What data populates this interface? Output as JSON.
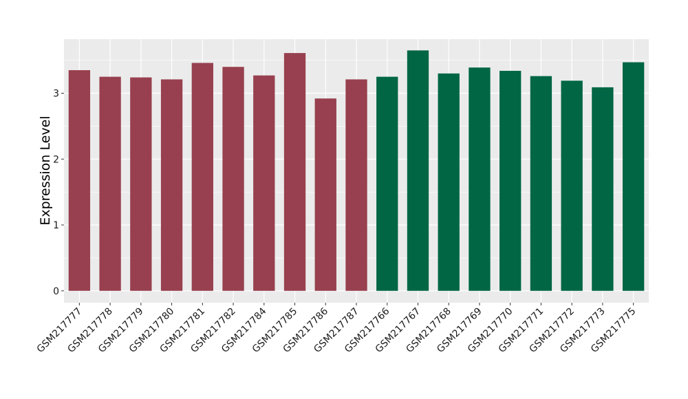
{
  "chart_data": {
    "type": "bar",
    "title": "",
    "xlabel": "",
    "ylabel": "Expression Level",
    "ylim": [
      -0.18,
      3.82
    ],
    "yticks": [
      0,
      1,
      2,
      3
    ],
    "grid": true,
    "categories": [
      "GSM217777",
      "GSM217778",
      "GSM217779",
      "GSM217780",
      "GSM217781",
      "GSM217782",
      "GSM217784",
      "GSM217785",
      "GSM217786",
      "GSM217787",
      "GSM217766",
      "GSM217767",
      "GSM217768",
      "GSM217769",
      "GSM217770",
      "GSM217771",
      "GSM217772",
      "GSM217773",
      "GSM217775"
    ],
    "values": [
      3.35,
      3.25,
      3.24,
      3.21,
      3.46,
      3.4,
      3.27,
      3.61,
      2.92,
      3.21,
      3.25,
      3.65,
      3.3,
      3.39,
      3.34,
      3.26,
      3.19,
      3.09,
      3.47
    ],
    "groups": [
      "a",
      "a",
      "a",
      "a",
      "a",
      "a",
      "a",
      "a",
      "a",
      "a",
      "b",
      "b",
      "b",
      "b",
      "b",
      "b",
      "b",
      "b",
      "b"
    ],
    "colors": {
      "a": "#98404f",
      "b": "#006644"
    },
    "panel_background": "#ebebeb",
    "grid_color": "#ffffff"
  }
}
